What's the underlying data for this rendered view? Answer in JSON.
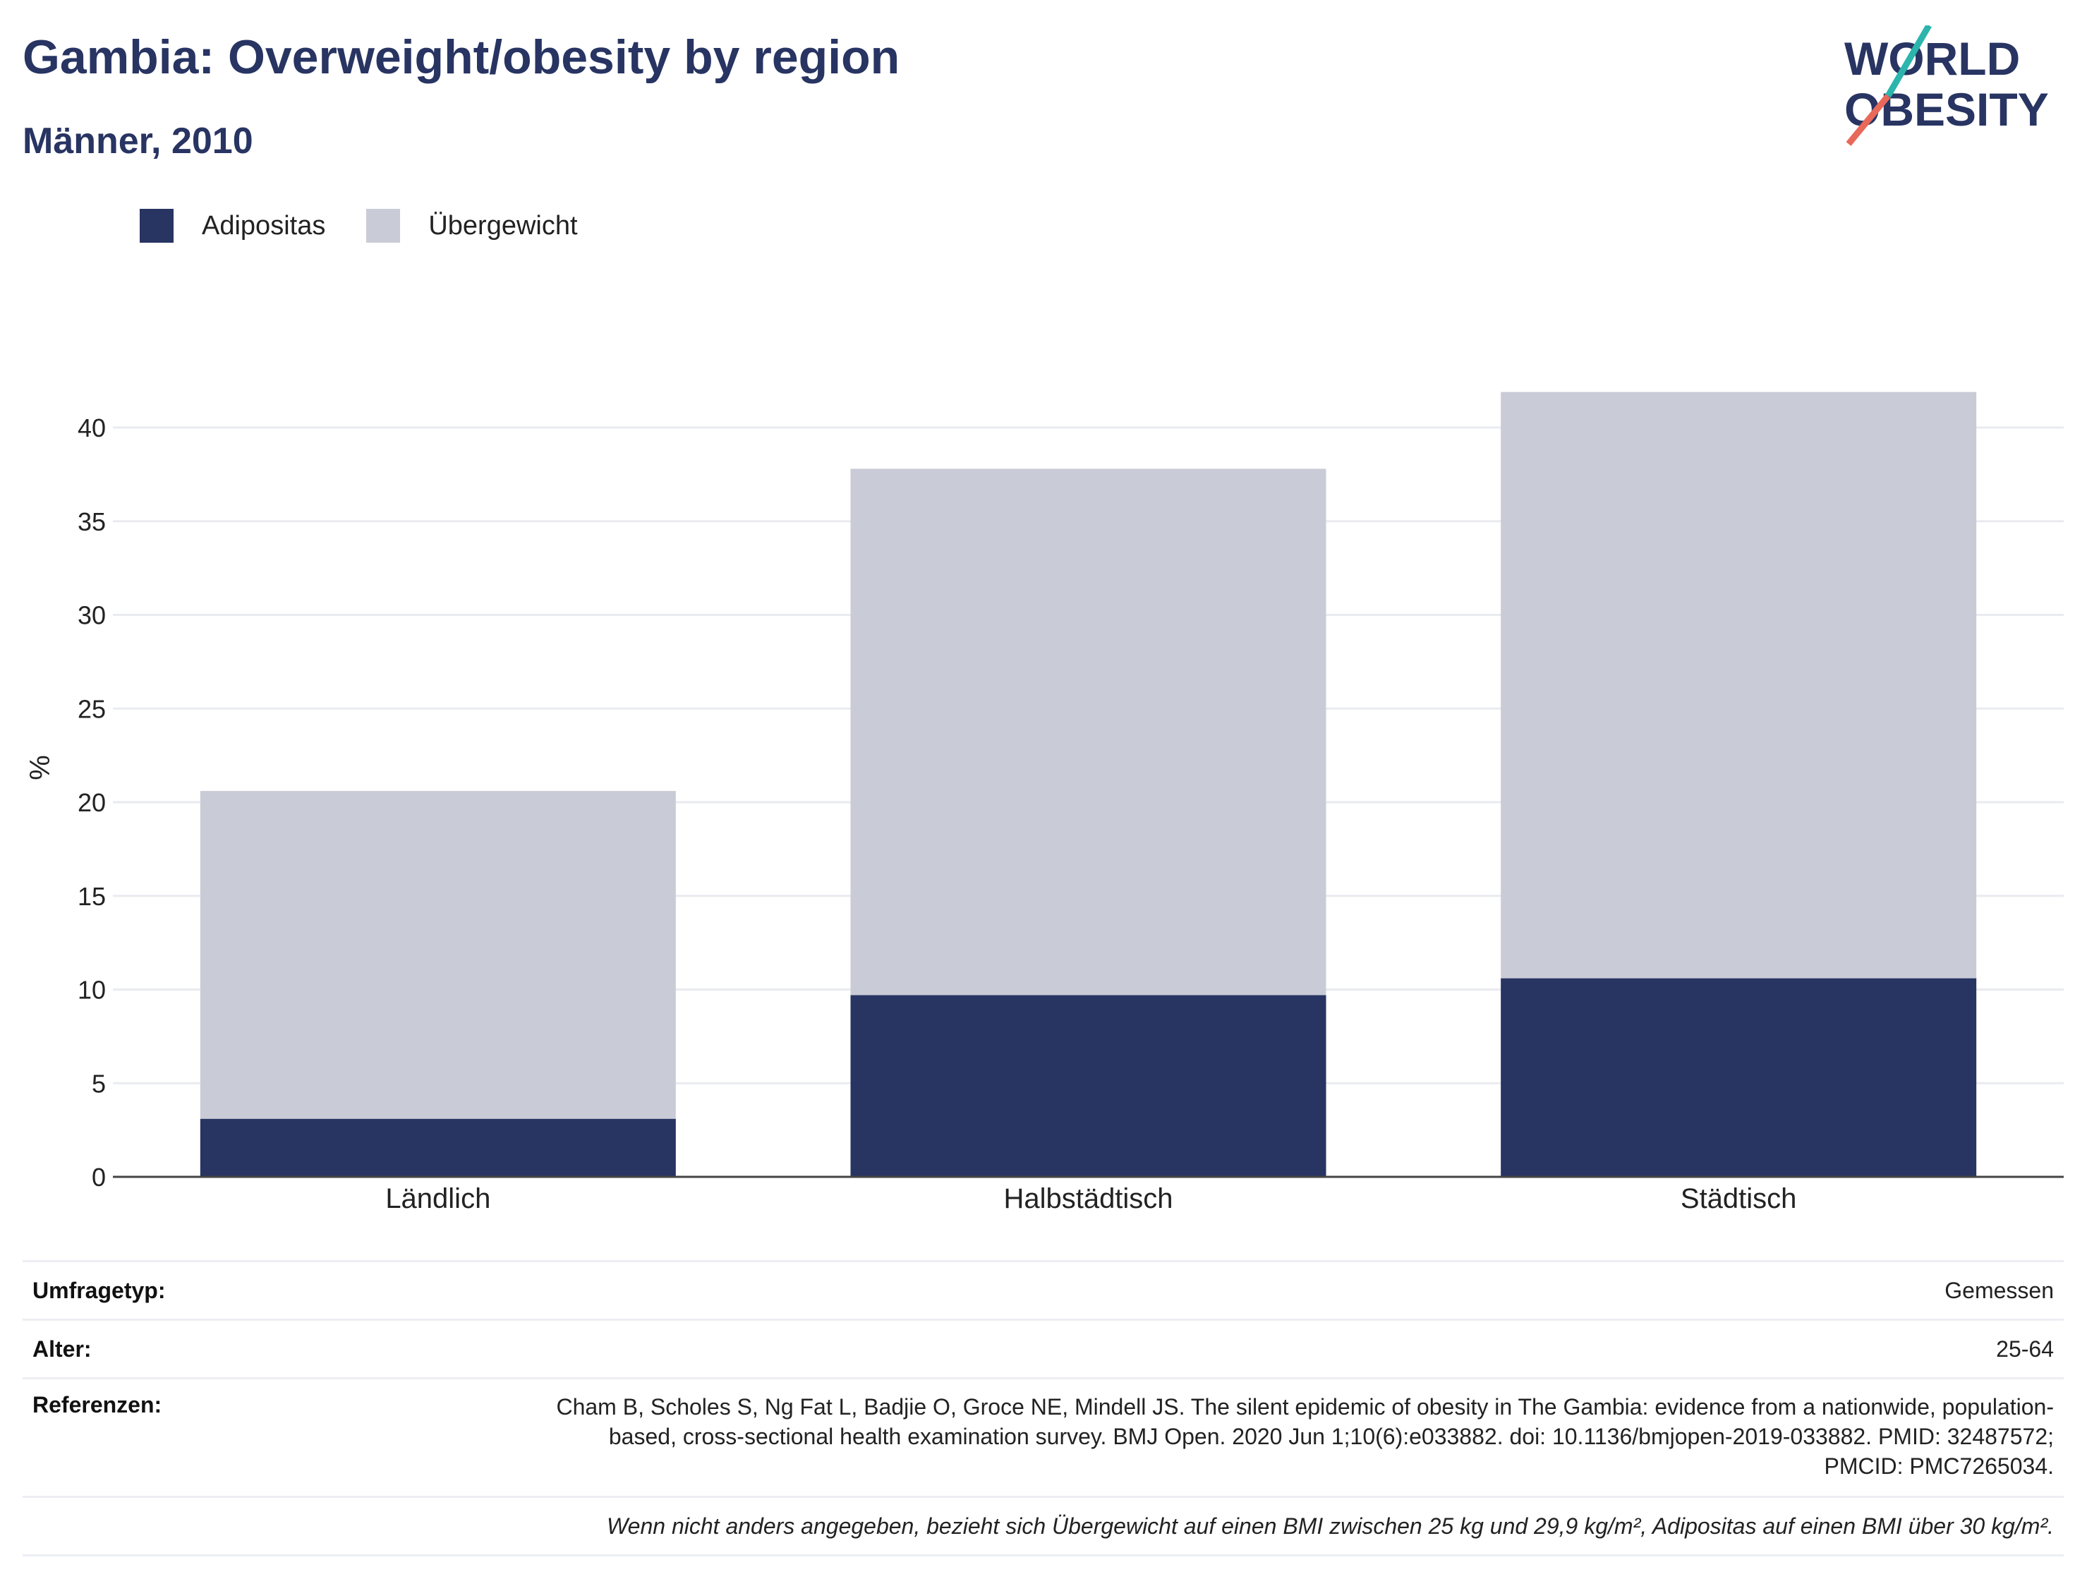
{
  "header": {
    "title": "Gambia: Overweight/obesity by region",
    "subtitle": "Männer, 2010"
  },
  "logo": {
    "line1": "WORLD",
    "line2": "OBESITY"
  },
  "legend": [
    {
      "label": "Adipositas",
      "color": "#283462"
    },
    {
      "label": "Übergewicht",
      "color": "#c9cbd7"
    }
  ],
  "chart_data": {
    "type": "bar",
    "stacked": true,
    "categories": [
      "Ländlich",
      "Halbstädtisch",
      "Städtisch"
    ],
    "series": [
      {
        "name": "Adipositas",
        "values": [
          3.1,
          9.7,
          10.6
        ],
        "color": "#283462"
      },
      {
        "name": "Übergewicht",
        "values": [
          17.5,
          28.1,
          31.3
        ],
        "color": "#c9cbd7"
      }
    ],
    "ylabel": "%",
    "xlabel": "",
    "ylim": [
      0,
      42
    ],
    "yticks": [
      0,
      5,
      10,
      15,
      20,
      25,
      30,
      35,
      40
    ],
    "grid": true
  },
  "info": {
    "survey_type_label": "Umfragetyp:",
    "survey_type_value": "Gemessen",
    "age_label": "Alter:",
    "age_value": "25-64",
    "references_label": "Referenzen:",
    "references_value": "Cham B, Scholes S, Ng Fat L, Badjie O, Groce NE, Mindell JS. The silent epidemic of obesity in The Gambia: evidence from a nationwide, population-based, cross-sectional health examination survey. BMJ Open. 2020 Jun 1;10(6):e033882. doi: 10.1136/bmjopen-2019-033882. PMID: 32487572; PMCID: PMC7265034.",
    "footnote": "Wenn nicht anders angegeben, bezieht sich Übergewicht auf einen BMI zwischen 25 kg und 29,9 kg/m², Adipositas auf einen BMI über 30 kg/m²."
  }
}
